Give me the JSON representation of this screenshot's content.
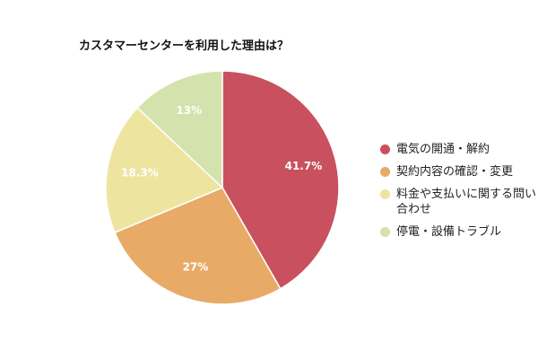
{
  "chart_data": {
    "type": "pie",
    "title": "カスタマーセンターを利用した理由は？",
    "categories": [
      "電気の開通・解約",
      "契約内容の確認・変更",
      "料金や支払いに関する問い合わせ",
      "停電・設備トラブル"
    ],
    "values": [
      41.7,
      27,
      18.3,
      13
    ],
    "labels": [
      "41.7%",
      "27%",
      "18.3%",
      "13%"
    ],
    "colors": [
      "#c9505e",
      "#e8ab67",
      "#ede59f",
      "#d4e2ae"
    ],
    "legend_position": "right",
    "start": "top",
    "direction": "clockwise"
  }
}
